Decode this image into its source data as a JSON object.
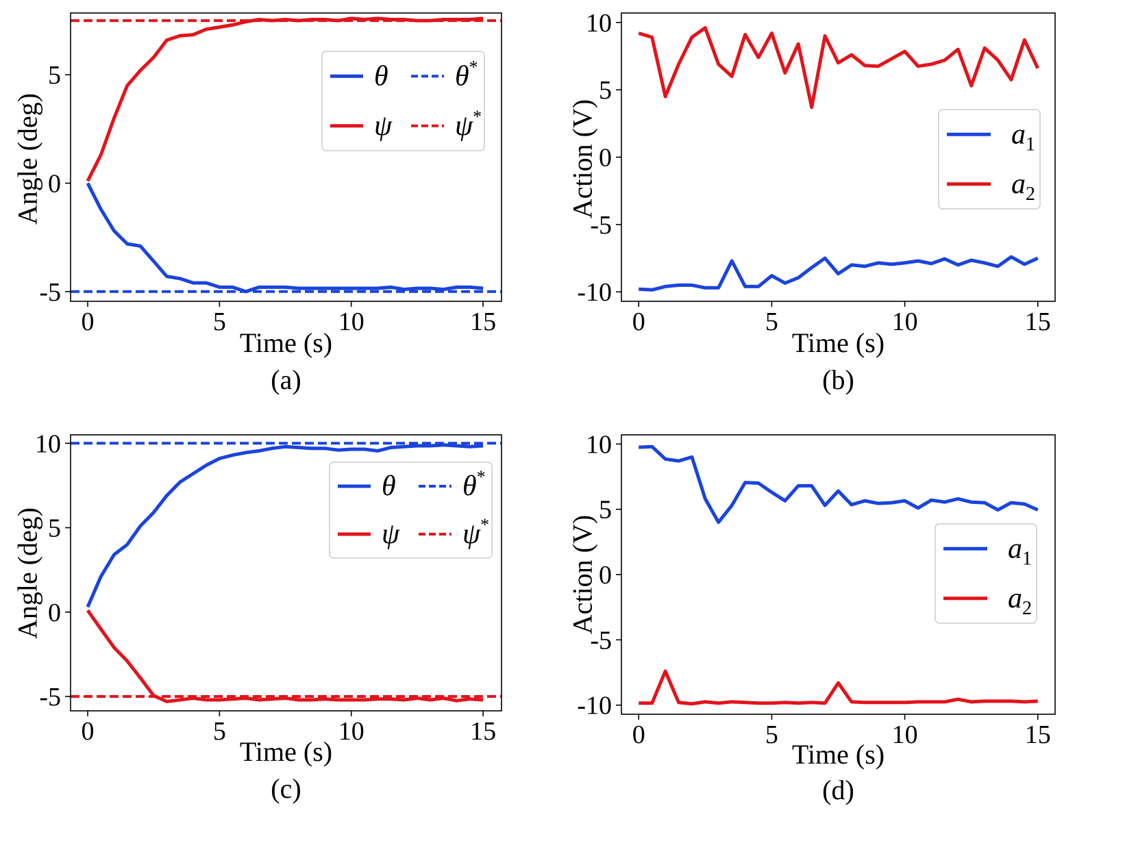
{
  "figure": {
    "panels": [
      "a",
      "b",
      "c",
      "d"
    ]
  },
  "chart_data": [
    {
      "id": "a",
      "type": "line",
      "caption": "(a)",
      "xlabel": "Time (s)",
      "ylabel": "Angle (deg)",
      "xlim": [
        -0.65,
        15.7
      ],
      "ylim": [
        -5.45,
        7.85
      ],
      "xticks": [
        0,
        5,
        10,
        15
      ],
      "xtick_labels": [
        "0",
        "5",
        "10",
        "15"
      ],
      "yticks": [
        -5,
        0,
        5
      ],
      "ytick_labels": [
        "-5",
        "0",
        "5"
      ],
      "grid": false,
      "legend": {
        "placement": "top-right",
        "columns": 2,
        "entries": [
          {
            "label": "θ",
            "sup": "",
            "color": "#1a44dd",
            "style": "solid"
          },
          {
            "label": "θ",
            "sup": "*",
            "color": "#1a44dd",
            "style": "dashed"
          },
          {
            "label": "ψ",
            "sup": "",
            "color": "#e3141b",
            "style": "solid"
          },
          {
            "label": "ψ",
            "sup": "*",
            "color": "#e3141b",
            "style": "dashed"
          }
        ]
      },
      "series": [
        {
          "name": "θ",
          "color": "#1a44dd",
          "style": "solid",
          "x": [
            0,
            0.5,
            1,
            1.5,
            2,
            2.5,
            3,
            3.5,
            4,
            4.5,
            5,
            5.5,
            6,
            6.5,
            7,
            7.5,
            8,
            8.5,
            9,
            9.5,
            10,
            10.5,
            11,
            11.5,
            12,
            12.5,
            13,
            13.5,
            14,
            14.5,
            15
          ],
          "y": [
            0,
            -1.2,
            -2.2,
            -2.8,
            -2.9,
            -3.6,
            -4.3,
            -4.4,
            -4.6,
            -4.6,
            -4.8,
            -4.8,
            -5.0,
            -4.8,
            -4.8,
            -4.8,
            -4.85,
            -4.85,
            -4.85,
            -4.85,
            -4.85,
            -4.85,
            -4.85,
            -4.8,
            -4.9,
            -4.85,
            -4.85,
            -4.9,
            -4.8,
            -4.8,
            -4.85
          ]
        },
        {
          "name": "ψ",
          "color": "#e3141b",
          "style": "solid",
          "x": [
            0,
            0.5,
            1,
            1.5,
            2,
            2.5,
            3,
            3.5,
            4,
            4.5,
            5,
            5.5,
            6,
            6.5,
            7,
            7.5,
            8,
            8.5,
            9,
            9.5,
            10,
            10.5,
            11,
            11.5,
            12,
            12.5,
            13,
            13.5,
            14,
            14.5,
            15
          ],
          "y": [
            0.1,
            1.3,
            3.0,
            4.5,
            5.2,
            5.8,
            6.6,
            6.8,
            6.85,
            7.1,
            7.2,
            7.3,
            7.45,
            7.55,
            7.5,
            7.55,
            7.5,
            7.55,
            7.55,
            7.5,
            7.6,
            7.55,
            7.6,
            7.55,
            7.55,
            7.5,
            7.5,
            7.55,
            7.55,
            7.55,
            7.6
          ]
        },
        {
          "name": "θ*",
          "color": "#1a44dd",
          "style": "dashed",
          "x": [
            -0.65,
            15.7
          ],
          "y": [
            -5,
            -5
          ]
        },
        {
          "name": "ψ*",
          "color": "#e3141b",
          "style": "dashed",
          "x": [
            -0.65,
            15.7
          ],
          "y": [
            7.5,
            7.5
          ]
        }
      ]
    },
    {
      "id": "b",
      "type": "line",
      "caption": "(b)",
      "xlabel": "Time (s)",
      "ylabel": "Action (V)",
      "xlim": [
        -0.65,
        15.65
      ],
      "ylim": [
        -10.7,
        10.7
      ],
      "xticks": [
        0,
        5,
        10,
        15
      ],
      "xtick_labels": [
        "0",
        "5",
        "10",
        "15"
      ],
      "yticks": [
        -10,
        -5,
        0,
        5,
        10
      ],
      "ytick_labels": [
        "-10",
        "-5",
        "0",
        "5",
        "10"
      ],
      "grid": false,
      "legend": {
        "placement": "center-right",
        "columns": 1,
        "entries": [
          {
            "label": "a",
            "sub": "1",
            "color": "#1a44dd",
            "style": "solid"
          },
          {
            "label": "a",
            "sub": "2",
            "color": "#e3141b",
            "style": "solid"
          }
        ]
      },
      "series": [
        {
          "name": "a1",
          "color": "#1a44dd",
          "style": "solid",
          "x": [
            0,
            0.5,
            1,
            1.5,
            2,
            2.5,
            3,
            3.5,
            4,
            4.5,
            5,
            5.5,
            6,
            6.5,
            7,
            7.5,
            8,
            8.5,
            9,
            9.5,
            10,
            10.5,
            11,
            11.5,
            12,
            12.5,
            13,
            13.5,
            14,
            14.5,
            15
          ],
          "y": [
            -9.8,
            -9.85,
            -9.6,
            -9.5,
            -9.5,
            -9.7,
            -9.7,
            -7.7,
            -9.6,
            -9.6,
            -8.8,
            -9.35,
            -8.95,
            -8.2,
            -7.5,
            -8.65,
            -8.0,
            -8.1,
            -7.85,
            -7.95,
            -7.85,
            -7.7,
            -7.9,
            -7.55,
            -8.0,
            -7.65,
            -7.85,
            -8.1,
            -7.4,
            -7.95,
            -7.5
          ]
        },
        {
          "name": "a2",
          "color": "#e3141b",
          "style": "solid",
          "x": [
            0,
            0.5,
            1,
            1.5,
            2,
            2.5,
            3,
            3.5,
            4,
            4.5,
            5,
            5.5,
            6,
            6.5,
            7,
            7.5,
            8,
            8.5,
            9,
            9.5,
            10,
            10.5,
            11,
            11.5,
            12,
            12.5,
            13,
            13.5,
            14,
            14.5,
            15
          ],
          "y": [
            9.2,
            8.9,
            4.5,
            6.9,
            8.9,
            9.6,
            6.9,
            6.0,
            9.1,
            7.4,
            9.2,
            6.25,
            8.4,
            3.7,
            9.0,
            7.0,
            7.6,
            6.8,
            6.75,
            7.3,
            7.85,
            6.75,
            6.9,
            7.2,
            8.0,
            5.3,
            8.1,
            7.2,
            5.75,
            8.7,
            6.6
          ]
        }
      ]
    },
    {
      "id": "c",
      "type": "line",
      "caption": "(c)",
      "xlabel": "Time (s)",
      "ylabel": "Angle (deg)",
      "xlim": [
        -0.65,
        15.7
      ],
      "ylim": [
        -5.85,
        10.5
      ],
      "xticks": [
        0,
        5,
        10,
        15
      ],
      "xtick_labels": [
        "0",
        "5",
        "10",
        "15"
      ],
      "yticks": [
        -5,
        0,
        5,
        10
      ],
      "ytick_labels": [
        "-5",
        "0",
        "5",
        "10"
      ],
      "grid": false,
      "legend": {
        "placement": "center-right",
        "columns": 2,
        "entries": [
          {
            "label": "θ",
            "sup": "",
            "color": "#1a44dd",
            "style": "solid"
          },
          {
            "label": "θ",
            "sup": "*",
            "color": "#1a44dd",
            "style": "dashed"
          },
          {
            "label": "ψ",
            "sup": "",
            "color": "#e3141b",
            "style": "solid"
          },
          {
            "label": "ψ",
            "sup": "*",
            "color": "#e3141b",
            "style": "dashed"
          }
        ]
      },
      "series": [
        {
          "name": "θ",
          "color": "#1a44dd",
          "style": "solid",
          "x": [
            0,
            0.5,
            1,
            1.5,
            2,
            2.5,
            3,
            3.5,
            4,
            4.5,
            5,
            5.5,
            6,
            6.5,
            7,
            7.5,
            8,
            8.5,
            9,
            9.5,
            10,
            10.5,
            11,
            11.5,
            12,
            12.5,
            13,
            13.5,
            14,
            14.5,
            15
          ],
          "y": [
            0.3,
            2.1,
            3.4,
            4.0,
            5.1,
            5.9,
            6.9,
            7.7,
            8.2,
            8.7,
            9.1,
            9.3,
            9.45,
            9.55,
            9.7,
            9.8,
            9.75,
            9.7,
            9.7,
            9.6,
            9.65,
            9.65,
            9.55,
            9.75,
            9.8,
            9.85,
            9.85,
            9.9,
            9.85,
            9.8,
            9.85
          ]
        },
        {
          "name": "ψ",
          "color": "#e3141b",
          "style": "solid",
          "x": [
            0,
            0.5,
            1,
            1.5,
            2,
            2.5,
            3,
            3.5,
            4,
            4.5,
            5,
            5.5,
            6,
            6.5,
            7,
            7.5,
            8,
            8.5,
            9,
            9.5,
            10,
            10.5,
            11,
            11.5,
            12,
            12.5,
            13,
            13.5,
            14,
            14.5,
            15
          ],
          "y": [
            0.1,
            -1.0,
            -2.1,
            -2.9,
            -3.9,
            -4.95,
            -5.3,
            -5.2,
            -5.1,
            -5.2,
            -5.2,
            -5.15,
            -5.1,
            -5.2,
            -5.15,
            -5.1,
            -5.2,
            -5.2,
            -5.15,
            -5.2,
            -5.2,
            -5.2,
            -5.15,
            -5.15,
            -5.2,
            -5.1,
            -5.2,
            -5.1,
            -5.25,
            -5.15,
            -5.2
          ]
        },
        {
          "name": "θ*",
          "color": "#1a44dd",
          "style": "dashed",
          "x": [
            -0.65,
            15.7
          ],
          "y": [
            10,
            10
          ]
        },
        {
          "name": "ψ*",
          "color": "#e3141b",
          "style": "dashed",
          "x": [
            -0.65,
            15.7
          ],
          "y": [
            -5,
            -5
          ]
        }
      ]
    },
    {
      "id": "d",
      "type": "line",
      "caption": "(d)",
      "xlabel": "Time (s)",
      "ylabel": "Action (V)",
      "xlim": [
        -0.65,
        15.65
      ],
      "ylim": [
        -10.7,
        10.7
      ],
      "xticks": [
        0,
        5,
        10,
        15
      ],
      "xtick_labels": [
        "0",
        "5",
        "10",
        "15"
      ],
      "yticks": [
        -10,
        -5,
        0,
        5,
        10
      ],
      "ytick_labels": [
        "-10",
        "-5",
        "0",
        "5",
        "10"
      ],
      "grid": false,
      "legend": {
        "placement": "center-right",
        "columns": 1,
        "entries": [
          {
            "label": "a",
            "sub": "1",
            "color": "#1a44dd",
            "style": "solid"
          },
          {
            "label": "a",
            "sub": "2",
            "color": "#e3141b",
            "style": "solid"
          }
        ]
      },
      "series": [
        {
          "name": "a1",
          "color": "#1a44dd",
          "style": "solid",
          "x": [
            0,
            0.5,
            1,
            1.5,
            2,
            2.5,
            3,
            3.5,
            4,
            4.5,
            5,
            5.5,
            6,
            6.5,
            7,
            7.5,
            8,
            8.5,
            9,
            9.5,
            10,
            10.5,
            11,
            11.5,
            12,
            12.5,
            13,
            13.5,
            14,
            14.5,
            15
          ],
          "y": [
            9.75,
            9.8,
            8.85,
            8.7,
            9.0,
            5.8,
            4.0,
            5.3,
            7.05,
            7.0,
            6.3,
            5.65,
            6.8,
            6.8,
            5.3,
            6.4,
            5.35,
            5.65,
            5.45,
            5.5,
            5.65,
            5.1,
            5.7,
            5.55,
            5.8,
            5.55,
            5.5,
            4.95,
            5.5,
            5.4,
            4.95
          ]
        },
        {
          "name": "a2",
          "color": "#e3141b",
          "style": "solid",
          "x": [
            0,
            0.5,
            1,
            1.5,
            2,
            2.5,
            3,
            3.5,
            4,
            4.5,
            5,
            5.5,
            6,
            6.5,
            7,
            7.5,
            8,
            8.5,
            9,
            9.5,
            10,
            10.5,
            11,
            11.5,
            12,
            12.5,
            13,
            13.5,
            14,
            14.5,
            15
          ],
          "y": [
            -9.85,
            -9.85,
            -7.4,
            -9.8,
            -9.9,
            -9.75,
            -9.85,
            -9.75,
            -9.8,
            -9.85,
            -9.85,
            -9.8,
            -9.85,
            -9.8,
            -9.85,
            -8.3,
            -9.75,
            -9.8,
            -9.8,
            -9.8,
            -9.8,
            -9.75,
            -9.75,
            -9.75,
            -9.55,
            -9.75,
            -9.7,
            -9.7,
            -9.7,
            -9.75,
            -9.7
          ]
        }
      ]
    }
  ]
}
